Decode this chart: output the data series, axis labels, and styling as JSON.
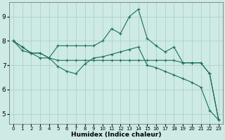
{
  "xlabel": "Humidex (Indice chaleur)",
  "background_color": "#cdeae4",
  "grid_color": "#aaccc6",
  "line_color": "#1a6e60",
  "xlim": [
    -0.5,
    23.5
  ],
  "ylim": [
    4.6,
    9.6
  ],
  "yticks": [
    5,
    6,
    7,
    8,
    9
  ],
  "xticks": [
    0,
    1,
    2,
    3,
    4,
    5,
    6,
    7,
    8,
    9,
    10,
    11,
    12,
    13,
    14,
    15,
    16,
    17,
    18,
    19,
    20,
    21,
    22,
    23
  ],
  "series": [
    [
      8.0,
      7.75,
      7.5,
      7.5,
      7.3,
      7.8,
      7.8,
      7.8,
      7.8,
      7.8,
      8.0,
      8.5,
      8.3,
      9.0,
      9.3,
      8.1,
      7.8,
      7.55,
      7.75,
      7.1,
      7.1,
      7.1,
      6.65,
      4.75
    ],
    [
      8.0,
      7.75,
      7.5,
      7.5,
      7.3,
      7.2,
      7.2,
      7.2,
      7.2,
      7.2,
      7.2,
      7.2,
      7.2,
      7.2,
      7.2,
      7.2,
      7.2,
      7.2,
      7.2,
      7.1,
      7.1,
      7.1,
      6.65,
      4.75
    ],
    [
      8.0,
      7.6,
      7.5,
      7.3,
      7.3,
      6.95,
      6.75,
      6.65,
      7.05,
      7.3,
      7.35,
      7.45,
      7.55,
      7.65,
      7.75,
      7.0,
      6.9,
      6.75,
      6.6,
      6.45,
      6.3,
      6.1,
      5.15,
      4.75
    ]
  ]
}
